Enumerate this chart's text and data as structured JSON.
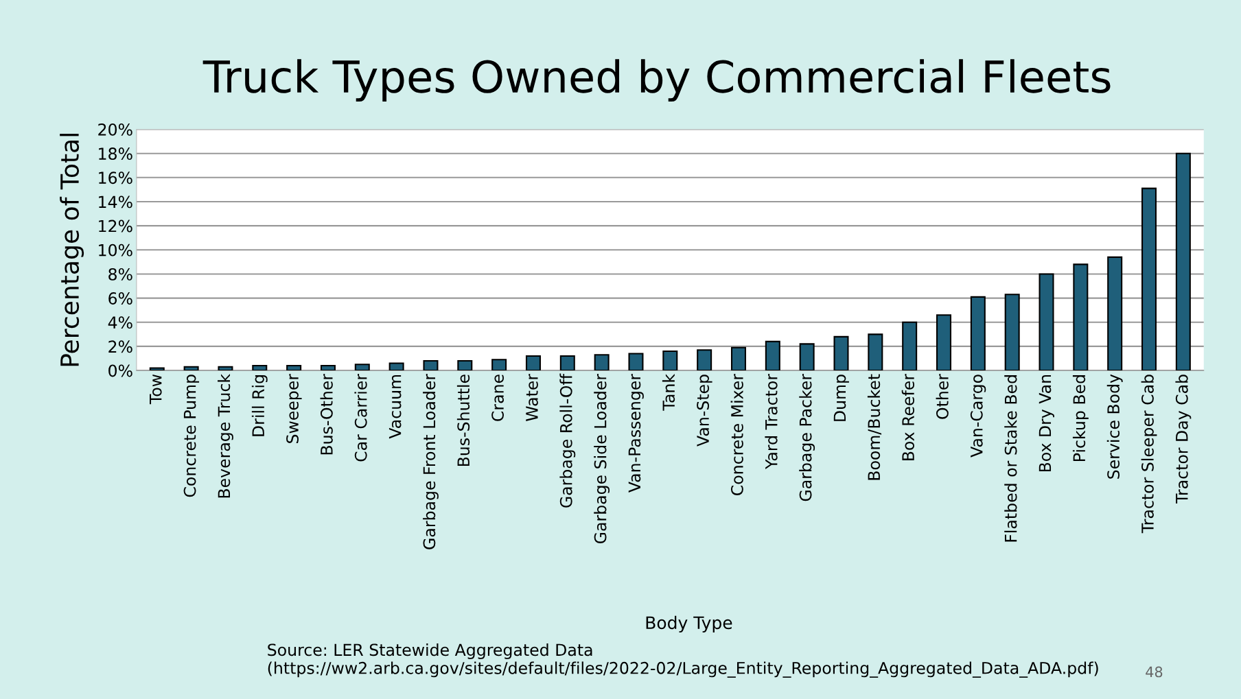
{
  "chart_data": {
    "type": "bar",
    "title": "Truck Types Owned by Commercial Fleets",
    "xlabel": "Body Type",
    "ylabel": "Percentage of Total",
    "categories": [
      "Tow",
      "Concrete Pump",
      "Beverage Truck",
      "Drill Rig",
      "Sweeper",
      "Bus-Other",
      "Car Carrier",
      "Vacuum",
      "Garbage Front Loader",
      "Bus-Shuttle",
      "Crane",
      "Water",
      "Garbage Roll-Off",
      "Garbage Side Loader",
      "Van-Passenger",
      "Tank",
      "Van-Step",
      "Concrete Mixer",
      "Yard Tractor",
      "Garbage Packer",
      "Dump",
      "Boom/Bucket",
      "Box Reefer",
      "Other",
      "Van-Cargo",
      "Flatbed or Stake Bed",
      "Box Dry Van",
      "Pickup Bed",
      "Service Body",
      "Tractor Sleeper Cab",
      "Tractor Day Cab"
    ],
    "values": [
      0.2,
      0.3,
      0.3,
      0.4,
      0.4,
      0.4,
      0.5,
      0.6,
      0.8,
      0.8,
      0.9,
      1.2,
      1.2,
      1.3,
      1.4,
      1.6,
      1.7,
      1.9,
      2.4,
      2.2,
      2.8,
      3.0,
      4.0,
      4.6,
      6.1,
      6.3,
      8.0,
      8.8,
      9.4,
      15.1,
      18.0
    ],
    "color": "#1f5f7a",
    "ylim": [
      0,
      20
    ],
    "yticks": [
      {
        "value": 0,
        "label": "0%"
      },
      {
        "value": 2,
        "label": "2%"
      },
      {
        "value": 4,
        "label": "4%"
      },
      {
        "value": 6,
        "label": "6%"
      },
      {
        "value": 8,
        "label": "8%"
      },
      {
        "value": 10,
        "label": "10%"
      },
      {
        "value": 12,
        "label": "12%"
      },
      {
        "value": 14,
        "label": "14%"
      },
      {
        "value": 16,
        "label": "16%"
      },
      {
        "value": 18,
        "label": "18%"
      },
      {
        "value": 20,
        "label": "20%"
      }
    ],
    "grid": "y",
    "annotations": [
      "Source: LER Statewide Aggregated Data (https://ww2.arb.ca.gov/sites/default/files/2022-02/Large_Entity_Reporting_Aggregated_Data_ADA.pdf)",
      "48"
    ]
  }
}
